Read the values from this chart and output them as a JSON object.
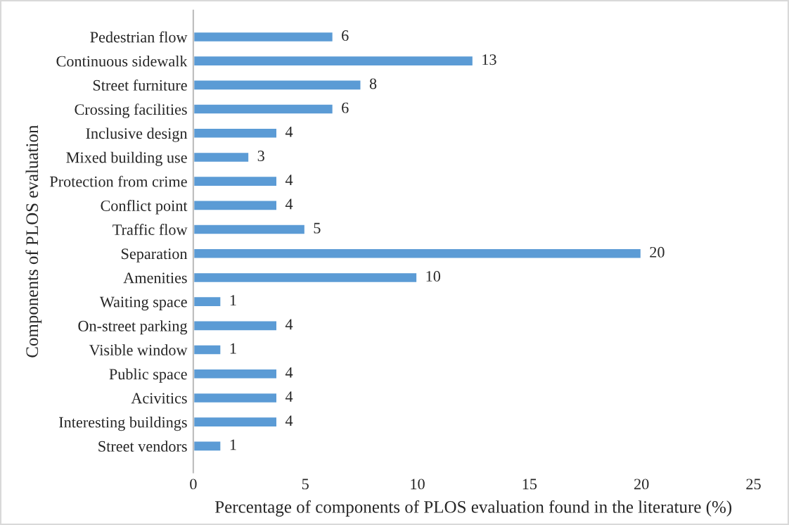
{
  "chart_data": {
    "type": "bar",
    "orientation": "horizontal",
    "xlabel": "Percentage of components of PLOS evaluation found in the literature (%)",
    "ylabel": "Components of PLOS evaluation",
    "categories": [
      "Pedestrian flow",
      "Continuous sidewalk",
      "Street furniture",
      "Crossing facilities",
      "Inclusive design",
      "Mixed building use",
      "Protection from crime",
      "Conflict point",
      "Traffic flow",
      "Separation",
      "Amenities",
      "Waiting space",
      "On-street parking",
      "Visible window",
      "Public space",
      "Acivitics",
      "Interesting buildings",
      "Street vendors"
    ],
    "values": [
      6.25,
      12.5,
      7.5,
      6.25,
      3.75,
      2.5,
      3.75,
      3.75,
      5,
      20,
      10,
      1.25,
      3.75,
      1.25,
      3.75,
      3.75,
      3.75,
      1.25
    ],
    "value_labels": [
      "6",
      "13",
      "8",
      "6",
      "4",
      "3",
      "4",
      "4",
      "5",
      "20",
      "10",
      "1",
      "4",
      "1",
      "4",
      "4",
      "4",
      "1"
    ],
    "color": "#5b9bd5",
    "xlim": [
      0,
      25
    ],
    "xticks": [
      0,
      5,
      10,
      15,
      20,
      25
    ],
    "grid": false,
    "legend": false
  }
}
